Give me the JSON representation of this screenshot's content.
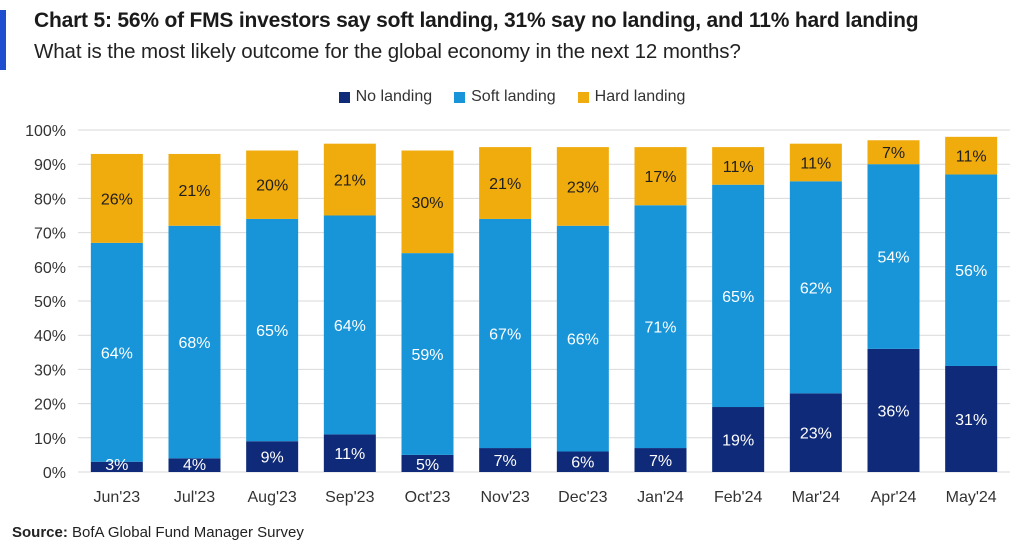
{
  "header": {
    "title": "Chart 5: 56% of FMS investors say soft landing, 31% say no landing, and 11% hard landing",
    "subtitle": "What is the most likely outcome for the global economy in the next 12 months?"
  },
  "source": {
    "label": "Source:",
    "text": " BofA Global Fund Manager Survey"
  },
  "colors": {
    "accent": "#1f4fcf",
    "no_landing": "#0f2a78",
    "soft_landing": "#1795d8",
    "hard_landing": "#f0ab0c",
    "grid": "#d9d9d9",
    "label_dark": "#1f1f1f",
    "label_light": "#ffffff"
  },
  "chart_data": {
    "type": "bar",
    "stacked": true,
    "categories": [
      "Jun'23",
      "Jul'23",
      "Aug'23",
      "Sep'23",
      "Oct'23",
      "Nov'23",
      "Dec'23",
      "Jan'24",
      "Feb'24",
      "Mar'24",
      "Apr'24",
      "May'24"
    ],
    "series": [
      {
        "name": "No landing",
        "values": [
          3,
          4,
          9,
          11,
          5,
          7,
          6,
          7,
          19,
          23,
          36,
          31
        ]
      },
      {
        "name": "Soft landing",
        "values": [
          64,
          68,
          65,
          64,
          59,
          67,
          66,
          71,
          65,
          62,
          54,
          56
        ]
      },
      {
        "name": "Hard landing",
        "values": [
          26,
          21,
          20,
          21,
          30,
          21,
          23,
          17,
          11,
          11,
          7,
          11
        ]
      }
    ],
    "data_labels": [
      [
        "3%",
        "4%",
        "9%",
        "11%",
        "5%",
        "7%",
        "6%",
        "7%",
        "19%",
        "23%",
        "36%",
        "31%"
      ],
      [
        "64%",
        "68%",
        "65%",
        "64%",
        "59%",
        "67%",
        "66%",
        "71%",
        "65%",
        "62%",
        "54%",
        "56%"
      ],
      [
        "26%",
        "21%",
        "20%",
        "21%",
        "30%",
        "21%",
        "23%",
        "17%",
        "11%",
        "11%",
        "7%",
        "11%"
      ]
    ],
    "ylim": [
      0,
      100
    ],
    "yticks": [
      "0%",
      "10%",
      "20%",
      "30%",
      "40%",
      "50%",
      "60%",
      "70%",
      "80%",
      "90%",
      "100%"
    ],
    "xlabel": "",
    "ylabel": "",
    "grid": true,
    "legend_position": "top-center"
  }
}
